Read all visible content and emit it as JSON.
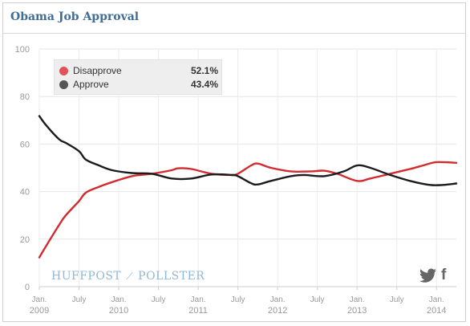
{
  "chart_data": {
    "type": "line",
    "title": "Obama Job Approval",
    "ylim": [
      0,
      100
    ],
    "yticks": [
      0,
      20,
      40,
      60,
      80,
      100
    ],
    "xlim": [
      "2009-01",
      "2014-04"
    ],
    "xtick_labels": [
      {
        "at": "2009-01",
        "line1": "Jan.",
        "line2": "2009"
      },
      {
        "at": "2009-07",
        "line1": "July",
        "line2": ""
      },
      {
        "at": "2010-01",
        "line1": "Jan.",
        "line2": "2010"
      },
      {
        "at": "2010-07",
        "line1": "July",
        "line2": ""
      },
      {
        "at": "2011-01",
        "line1": "Jan.",
        "line2": "2011"
      },
      {
        "at": "2011-07",
        "line1": "July",
        "line2": ""
      },
      {
        "at": "2012-01",
        "line1": "Jan.",
        "line2": "2012"
      },
      {
        "at": "2012-07",
        "line1": "July",
        "line2": ""
      },
      {
        "at": "2013-01",
        "line1": "Jan.",
        "line2": "2013"
      },
      {
        "at": "2013-07",
        "line1": "July",
        "line2": ""
      },
      {
        "at": "2014-01",
        "line1": "Jan.",
        "line2": "2014"
      }
    ],
    "grid": true,
    "legend_position": "top-left",
    "series": [
      {
        "name": "Disapprove",
        "color": "#d22a2e",
        "legend_color": "#e0525a",
        "latest": "52.1%",
        "points": [
          [
            "2009-01",
            12.3
          ],
          [
            "2009-02",
            17
          ],
          [
            "2009-04",
            26
          ],
          [
            "2009-05",
            30
          ],
          [
            "2009-07",
            36
          ],
          [
            "2009-08",
            39.5
          ],
          [
            "2009-10",
            42
          ],
          [
            "2009-12",
            44
          ],
          [
            "2010-03",
            46.5
          ],
          [
            "2010-06",
            47.5
          ],
          [
            "2010-09",
            49
          ],
          [
            "2010-10",
            49.8
          ],
          [
            "2010-12",
            49.5
          ],
          [
            "2011-03",
            47.5
          ],
          [
            "2011-06",
            47
          ],
          [
            "2011-07",
            47.5
          ],
          [
            "2011-09",
            51
          ],
          [
            "2011-10",
            51.8
          ],
          [
            "2011-12",
            50
          ],
          [
            "2012-03",
            48.5
          ],
          [
            "2012-06",
            48.5
          ],
          [
            "2012-08",
            48.8
          ],
          [
            "2012-10",
            47.5
          ],
          [
            "2013-01",
            44.5
          ],
          [
            "2013-03",
            45.5
          ],
          [
            "2013-06",
            47.5
          ],
          [
            "2013-09",
            49.5
          ],
          [
            "2013-11",
            51
          ],
          [
            "2014-01",
            52.4
          ],
          [
            "2014-04",
            52.1
          ]
        ]
      },
      {
        "name": "Approve",
        "color": "#1b1b1b",
        "legend_color": "#555555",
        "latest": "43.4%",
        "points": [
          [
            "2009-01",
            71.8
          ],
          [
            "2009-02",
            68
          ],
          [
            "2009-04",
            62
          ],
          [
            "2009-05",
            60.5
          ],
          [
            "2009-07",
            57
          ],
          [
            "2009-08",
            53.5
          ],
          [
            "2009-10",
            51
          ],
          [
            "2009-12",
            49
          ],
          [
            "2010-03",
            47.8
          ],
          [
            "2010-06",
            47.5
          ],
          [
            "2010-09",
            45.5
          ],
          [
            "2010-12",
            45.5
          ],
          [
            "2011-03",
            47.2
          ],
          [
            "2011-06",
            47
          ],
          [
            "2011-07",
            46.5
          ],
          [
            "2011-09",
            43.5
          ],
          [
            "2011-10",
            43
          ],
          [
            "2011-12",
            44.5
          ],
          [
            "2012-03",
            46.5
          ],
          [
            "2012-05",
            47
          ],
          [
            "2012-08",
            46.5
          ],
          [
            "2012-11",
            48.5
          ],
          [
            "2013-01",
            51
          ],
          [
            "2013-03",
            50
          ],
          [
            "2013-06",
            47
          ],
          [
            "2013-09",
            44.5
          ],
          [
            "2013-12",
            42.8
          ],
          [
            "2014-02",
            42.8
          ],
          [
            "2014-04",
            43.4
          ]
        ]
      }
    ]
  },
  "branding": {
    "left": "HUFFPOST",
    "separator": "⟋",
    "right": "POLLSTER"
  },
  "social": {
    "twitter_icon": "twitter-icon",
    "facebook_icon": "facebook-icon",
    "facebook_glyph": "f"
  }
}
